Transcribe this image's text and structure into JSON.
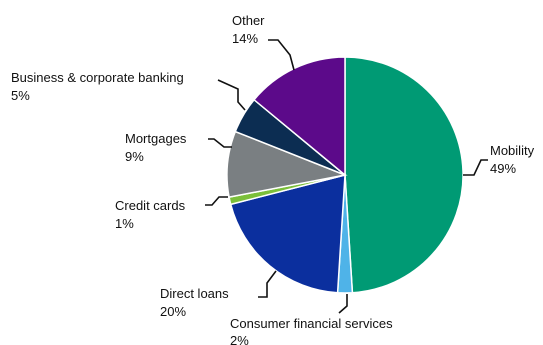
{
  "chart_data": {
    "type": "pie",
    "title": "",
    "start_angle_deg": 0,
    "direction": "clockwise",
    "legend": "none",
    "slices": [
      {
        "label": "Mobility",
        "value": 49,
        "value_label": "49%",
        "color": "#009a74"
      },
      {
        "label": "Consumer financial services",
        "value": 2,
        "value_label": "2%",
        "color": "#4fb3e8"
      },
      {
        "label": "Direct loans",
        "value": 20,
        "value_label": "20%",
        "color": "#0b2f9e"
      },
      {
        "label": "Credit cards",
        "value": 1,
        "value_label": "1%",
        "color": "#7bbf3a"
      },
      {
        "label": "Mortgages",
        "value": 9,
        "value_label": "9%",
        "color": "#7a7f82"
      },
      {
        "label": "Business & corporate banking",
        "value": 5,
        "value_label": "5%",
        "color": "#0c2d52"
      },
      {
        "label": "Other",
        "value": 14,
        "value_label": "14%",
        "color": "#5c0a8a"
      }
    ]
  }
}
